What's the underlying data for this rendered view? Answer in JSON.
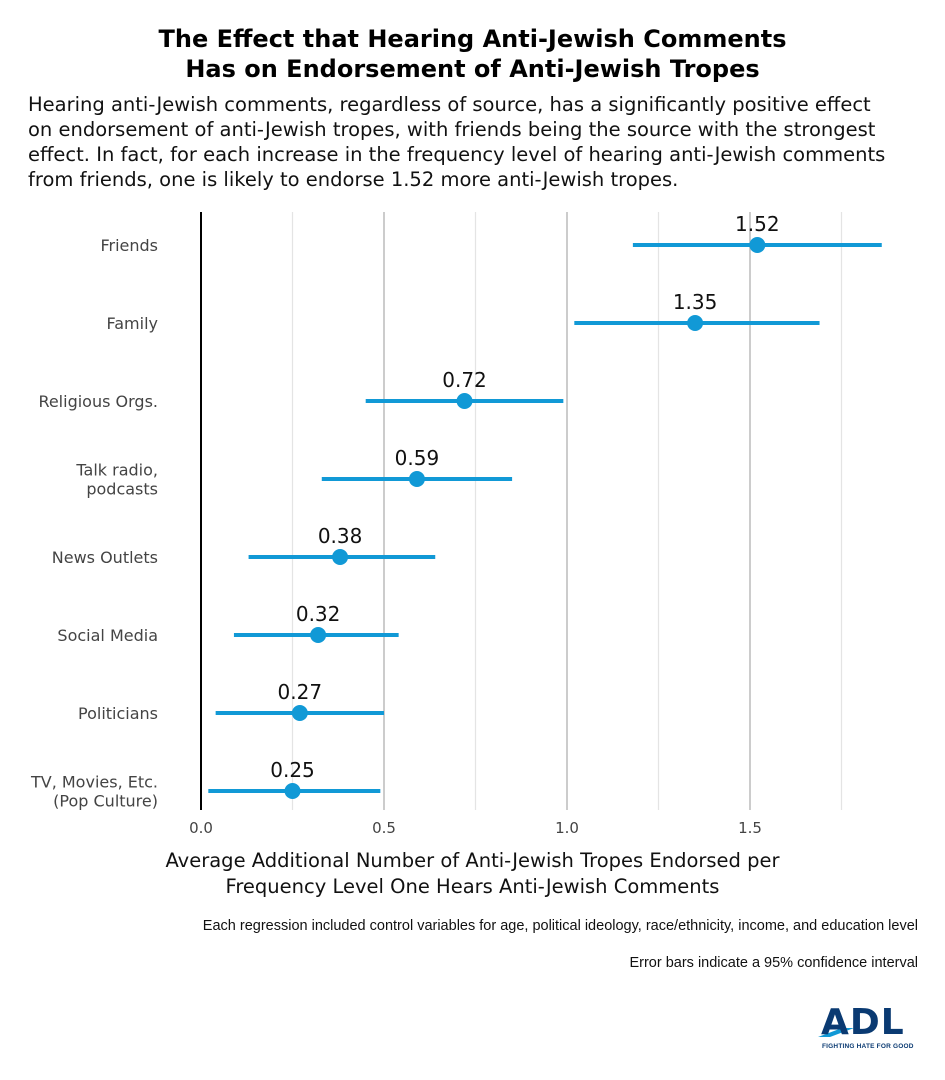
{
  "title": {
    "line1": "The Effect that Hearing Anti-Jewish Comments",
    "line2": "Has on Endorsement of Anti-Jewish Tropes"
  },
  "subtitle": {
    "lines": [
      "Hearing anti-Jewish comments, regardless of source, has a significantly positive effect",
      "on endorsement of anti-Jewish tropes, with friends being the source with the strongest",
      "effect. In fact, for each increase in the frequency level of hearing anti-Jewish comments",
      "from friends, one is likely to endorse 1.52 more anti-Jewish tropes."
    ]
  },
  "notes": {
    "controls": "Each regression included control variables for age, political ideology, race/ethnicity, income, and education level",
    "error_bars": "Error bars indicate a 95% confidence interval"
  },
  "logo": {
    "text": "ADL",
    "tagline": "FIGHTING HATE FOR GOOD"
  },
  "colors": {
    "accent": "#1199d6",
    "axis": "#000000",
    "grid_major": "#c0c0c0",
    "grid_minor": "#e4e4e4",
    "logo": "#0a3a72"
  },
  "chart_data": {
    "type": "scatter",
    "subtype": "dot-and-whisker",
    "xlabel_lines": [
      "Average Additional Number of Anti-Jewish Tropes Endorsed per",
      "Frequency Level One Hears Anti-Jewish Comments"
    ],
    "ylabel": "",
    "xlim": [
      0,
      1.85
    ],
    "x_ticks": [
      0.0,
      0.5,
      1.0,
      1.5
    ],
    "x_tick_labels": [
      "0.0",
      "0.5",
      "1.0",
      "1.5"
    ],
    "grid": true,
    "series": [
      {
        "label": [
          "Friends"
        ],
        "value": 1.52,
        "value_label": "1.52",
        "ci": [
          1.18,
          1.86
        ]
      },
      {
        "label": [
          "Family"
        ],
        "value": 1.35,
        "value_label": "1.35",
        "ci": [
          1.02,
          1.69
        ]
      },
      {
        "label": [
          "Religious Orgs."
        ],
        "value": 0.72,
        "value_label": "0.72",
        "ci": [
          0.45,
          0.99
        ]
      },
      {
        "label": [
          "Talk radio,",
          "podcasts"
        ],
        "value": 0.59,
        "value_label": "0.59",
        "ci": [
          0.33,
          0.85
        ]
      },
      {
        "label": [
          "News Outlets"
        ],
        "value": 0.38,
        "value_label": "0.38",
        "ci": [
          0.13,
          0.64
        ]
      },
      {
        "label": [
          "Social Media"
        ],
        "value": 0.32,
        "value_label": "0.32",
        "ci": [
          0.09,
          0.54
        ]
      },
      {
        "label": [
          "Politicians"
        ],
        "value": 0.27,
        "value_label": "0.27",
        "ci": [
          0.04,
          0.5
        ]
      },
      {
        "label": [
          "TV, Movies, Etc.",
          "(Pop Culture)"
        ],
        "value": 0.25,
        "value_label": "0.25",
        "ci": [
          0.02,
          0.49
        ]
      }
    ]
  }
}
